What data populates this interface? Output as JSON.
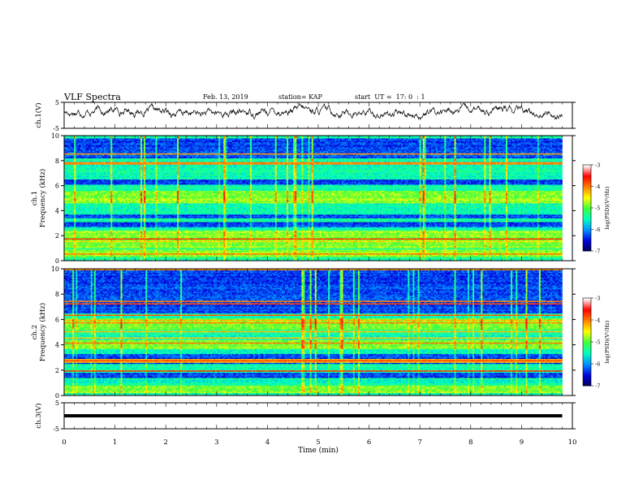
{
  "header": {
    "title": "VLF Spectra",
    "date": "Feb. 13, 2019",
    "station": "station= KAP",
    "start_ut": "start  UT =  17: 0  : 1"
  },
  "chart_data": [
    {
      "type": "line",
      "panel": "ch1-waveform",
      "ylabel": "ch.1(V)",
      "ylim": [
        -5,
        5
      ],
      "yticks": [
        5,
        -5
      ],
      "xlim": [
        0,
        10
      ],
      "approx_level": 1.2,
      "seed": 17
    },
    {
      "type": "heatmap",
      "panel": "ch1-spectrogram",
      "ylabel": "ch.1\nFrequency (kHz)",
      "ylim": [
        0,
        10
      ],
      "yticks": [
        0,
        2,
        4,
        6,
        8,
        10
      ],
      "xlim": [
        0,
        9.8
      ],
      "colorbar": {
        "label": "log(PSD)(V²/Hz)",
        "range": [
          -7,
          -3
        ],
        "ticks": [
          -3,
          -4,
          -5,
          -6,
          -7
        ],
        "colors": [
          "#000050",
          "#0000e0",
          "#0090ff",
          "#00ffc0",
          "#40ff40",
          "#ffff00",
          "#ff8000",
          "#ff0000",
          "#ffffff"
        ]
      },
      "quiet_bands_khz": [
        [
          2.7,
          3.1
        ],
        [
          3.4,
          3.7
        ],
        [
          6.1,
          6.5
        ],
        [
          8.2,
          9.8
        ]
      ],
      "strong_bands_khz": [
        [
          0.3,
          0.9
        ],
        [
          1.0,
          2.4
        ],
        [
          4.6,
          5.6
        ]
      ],
      "seed": 101
    },
    {
      "type": "heatmap",
      "panel": "ch2-spectrogram",
      "ylabel": "ch.2\nFrequency (kHz)",
      "ylim": [
        0,
        10
      ],
      "yticks": [
        0,
        2,
        4,
        6,
        8,
        10
      ],
      "xlim": [
        0,
        9.8
      ],
      "colorbar": {
        "label": "log(PSD)(V²/Hz)",
        "range": [
          -7,
          -3
        ],
        "ticks": [
          -3,
          -4,
          -5,
          -6,
          -7
        ],
        "colors": [
          "#000050",
          "#0000e0",
          "#0090ff",
          "#00ffc0",
          "#40ff40",
          "#ffff00",
          "#ff8000",
          "#ff0000",
          "#ffffff"
        ]
      },
      "quiet_bands_khz": [
        [
          1.4,
          1.8
        ],
        [
          2.5,
          3.3
        ],
        [
          6.5,
          10.0
        ]
      ],
      "strong_bands_khz": [
        [
          0.2,
          0.8
        ],
        [
          3.7,
          4.4
        ],
        [
          5.2,
          6.1
        ]
      ],
      "seed": 202
    },
    {
      "type": "line",
      "panel": "ch3-waveform",
      "ylabel": "ch.3(V)",
      "ylim": [
        -5,
        5
      ],
      "yticks": [
        5,
        -5
      ],
      "xlim": [
        0,
        10
      ],
      "level": 0,
      "xlabel": "Time  (min)",
      "xticks": [
        0,
        1,
        2,
        3,
        4,
        5,
        6,
        7,
        8,
        9,
        10
      ]
    }
  ]
}
